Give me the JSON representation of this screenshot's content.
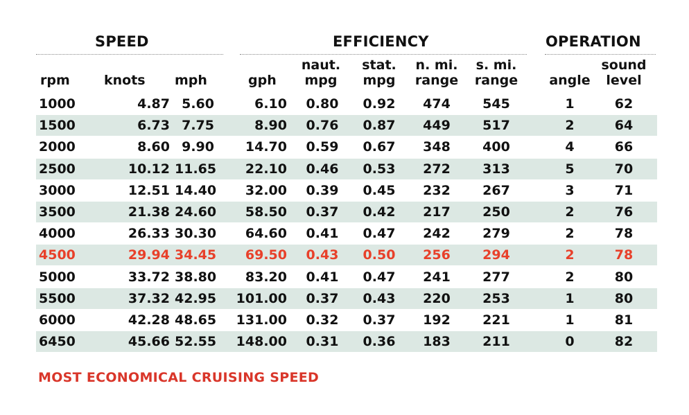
{
  "groups": {
    "speed": "SPEED",
    "efficiency": "EFFICIENCY",
    "operation": "OPERATION"
  },
  "headers": {
    "rpm": "rpm",
    "knots": "knots",
    "mph": "mph",
    "gph": "gph",
    "naut_mpg_1": "naut.",
    "naut_mpg_2": "mpg",
    "stat_mpg_1": "stat.",
    "stat_mpg_2": "mpg",
    "nmi_range_1": "n. mi.",
    "nmi_range_2": "range",
    "smi_range_1": "s. mi.",
    "smi_range_2": "range",
    "angle": "angle",
    "sound_1": "sound",
    "sound_2": "level"
  },
  "rows": [
    {
      "rpm": "1000",
      "knots": "4.87",
      "mph": "5.60",
      "gph": "6.10",
      "naut_mpg": "0.80",
      "stat_mpg": "0.92",
      "nmi_range": "474",
      "smi_range": "545",
      "angle": "1",
      "sound": "62"
    },
    {
      "rpm": "1500",
      "knots": "6.73",
      "mph": "7.75",
      "gph": "8.90",
      "naut_mpg": "0.76",
      "stat_mpg": "0.87",
      "nmi_range": "449",
      "smi_range": "517",
      "angle": "2",
      "sound": "64"
    },
    {
      "rpm": "2000",
      "knots": "8.60",
      "mph": "9.90",
      "gph": "14.70",
      "naut_mpg": "0.59",
      "stat_mpg": "0.67",
      "nmi_range": "348",
      "smi_range": "400",
      "angle": "4",
      "sound": "66"
    },
    {
      "rpm": "2500",
      "knots": "10.12",
      "mph": "11.65",
      "gph": "22.10",
      "naut_mpg": "0.46",
      "stat_mpg": "0.53",
      "nmi_range": "272",
      "smi_range": "313",
      "angle": "5",
      "sound": "70"
    },
    {
      "rpm": "3000",
      "knots": "12.51",
      "mph": "14.40",
      "gph": "32.00",
      "naut_mpg": "0.39",
      "stat_mpg": "0.45",
      "nmi_range": "232",
      "smi_range": "267",
      "angle": "3",
      "sound": "71"
    },
    {
      "rpm": "3500",
      "knots": "21.38",
      "mph": "24.60",
      "gph": "58.50",
      "naut_mpg": "0.37",
      "stat_mpg": "0.42",
      "nmi_range": "217",
      "smi_range": "250",
      "angle": "2",
      "sound": "76"
    },
    {
      "rpm": "4000",
      "knots": "26.33",
      "mph": "30.30",
      "gph": "64.60",
      "naut_mpg": "0.41",
      "stat_mpg": "0.47",
      "nmi_range": "242",
      "smi_range": "279",
      "angle": "2",
      "sound": "78"
    },
    {
      "rpm": "4500",
      "knots": "29.94",
      "mph": "34.45",
      "gph": "69.50",
      "naut_mpg": "0.43",
      "stat_mpg": "0.50",
      "nmi_range": "256",
      "smi_range": "294",
      "angle": "2",
      "sound": "78"
    },
    {
      "rpm": "5000",
      "knots": "33.72",
      "mph": "38.80",
      "gph": "83.20",
      "naut_mpg": "0.41",
      "stat_mpg": "0.47",
      "nmi_range": "241",
      "smi_range": "277",
      "angle": "2",
      "sound": "80"
    },
    {
      "rpm": "5500",
      "knots": "37.32",
      "mph": "42.95",
      "gph": "101.00",
      "naut_mpg": "0.37",
      "stat_mpg": "0.43",
      "nmi_range": "220",
      "smi_range": "253",
      "angle": "1",
      "sound": "80"
    },
    {
      "rpm": "6000",
      "knots": "42.28",
      "mph": "48.65",
      "gph": "131.00",
      "naut_mpg": "0.32",
      "stat_mpg": "0.37",
      "nmi_range": "192",
      "smi_range": "221",
      "angle": "1",
      "sound": "81"
    },
    {
      "rpm": "6450",
      "knots": "45.66",
      "mph": "52.55",
      "gph": "148.00",
      "naut_mpg": "0.31",
      "stat_mpg": "0.36",
      "nmi_range": "183",
      "smi_range": "211",
      "angle": "0",
      "sound": "82"
    }
  ],
  "highlight_rpm": "4500",
  "footnote": "MOST ECONOMICAL CRUISING SPEED",
  "colors": {
    "highlight": "#e8402a",
    "row_shade": "#dce8e3",
    "footnote": "#d9362a"
  }
}
